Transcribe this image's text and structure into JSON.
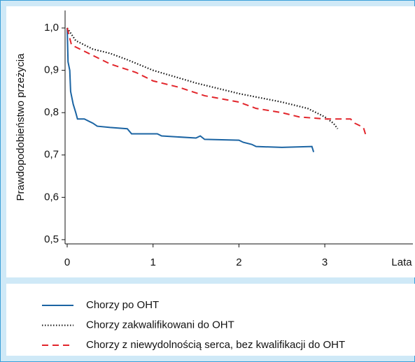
{
  "chart_data": {
    "type": "line",
    "ylabel": "Prawdopodobieństwo przeżycia",
    "xlabel": "Lata",
    "xlim": [
      0,
      4
    ],
    "ylim": [
      0.49,
      1.04
    ],
    "xticks": [
      0,
      1,
      2,
      3
    ],
    "yticks": [
      {
        "value": 0.5,
        "label": "0,5"
      },
      {
        "value": 0.6,
        "label": "0,6"
      },
      {
        "value": 0.7,
        "label": "0,7"
      },
      {
        "value": 0.8,
        "label": "0,8"
      },
      {
        "value": 0.9,
        "label": "0,9"
      },
      {
        "value": 1.0,
        "label": "1,0"
      }
    ],
    "series": [
      {
        "name": "Chorzy po OHT",
        "color": "#1b64a3",
        "style": "solid",
        "x": [
          0,
          0.01,
          0.03,
          0.04,
          0.07,
          0.1,
          0.12,
          0.2,
          0.3,
          0.35,
          0.5,
          0.7,
          0.75,
          1.05,
          1.1,
          1.5,
          1.55,
          1.6,
          2.0,
          2.05,
          2.15,
          2.2,
          2.5,
          2.85,
          2.87
        ],
        "values": [
          1.0,
          0.92,
          0.9,
          0.85,
          0.82,
          0.8,
          0.785,
          0.785,
          0.775,
          0.768,
          0.765,
          0.762,
          0.75,
          0.75,
          0.745,
          0.74,
          0.745,
          0.737,
          0.735,
          0.73,
          0.725,
          0.72,
          0.718,
          0.72,
          0.707
        ]
      },
      {
        "name": "Chorzy zakwalifikowani do OHT",
        "color": "#111111",
        "style": "dotted",
        "x": [
          0,
          0.1,
          0.3,
          0.5,
          0.7,
          1.0,
          1.5,
          2.0,
          2.5,
          2.8,
          3.0,
          3.1,
          3.15
        ],
        "values": [
          1.0,
          0.97,
          0.95,
          0.94,
          0.925,
          0.9,
          0.87,
          0.845,
          0.825,
          0.81,
          0.79,
          0.775,
          0.762
        ]
      },
      {
        "name": "Chorzy z niewydolnością serca, bez kwalifikacji do OHT",
        "color": "#e2252b",
        "style": "dashed",
        "x": [
          0,
          0.05,
          0.3,
          0.5,
          0.8,
          1.0,
          1.3,
          1.6,
          2.0,
          2.2,
          2.5,
          2.7,
          3.0,
          3.3,
          3.35,
          3.45,
          3.48
        ],
        "values": [
          1.0,
          0.96,
          0.935,
          0.915,
          0.895,
          0.875,
          0.86,
          0.84,
          0.825,
          0.81,
          0.8,
          0.79,
          0.785,
          0.785,
          0.775,
          0.765,
          0.745
        ]
      }
    ]
  }
}
